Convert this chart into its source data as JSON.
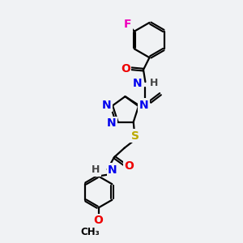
{
  "background_color": "#f0f2f4",
  "atom_colors": {
    "C": "#000000",
    "N": "#0000ee",
    "O": "#ee0000",
    "S": "#bbaa00",
    "F": "#ee00bb",
    "H": "#000000"
  },
  "bond_lw": 1.6,
  "font_size": 10,
  "figsize": [
    3.0,
    3.0
  ],
  "dpi": 100
}
